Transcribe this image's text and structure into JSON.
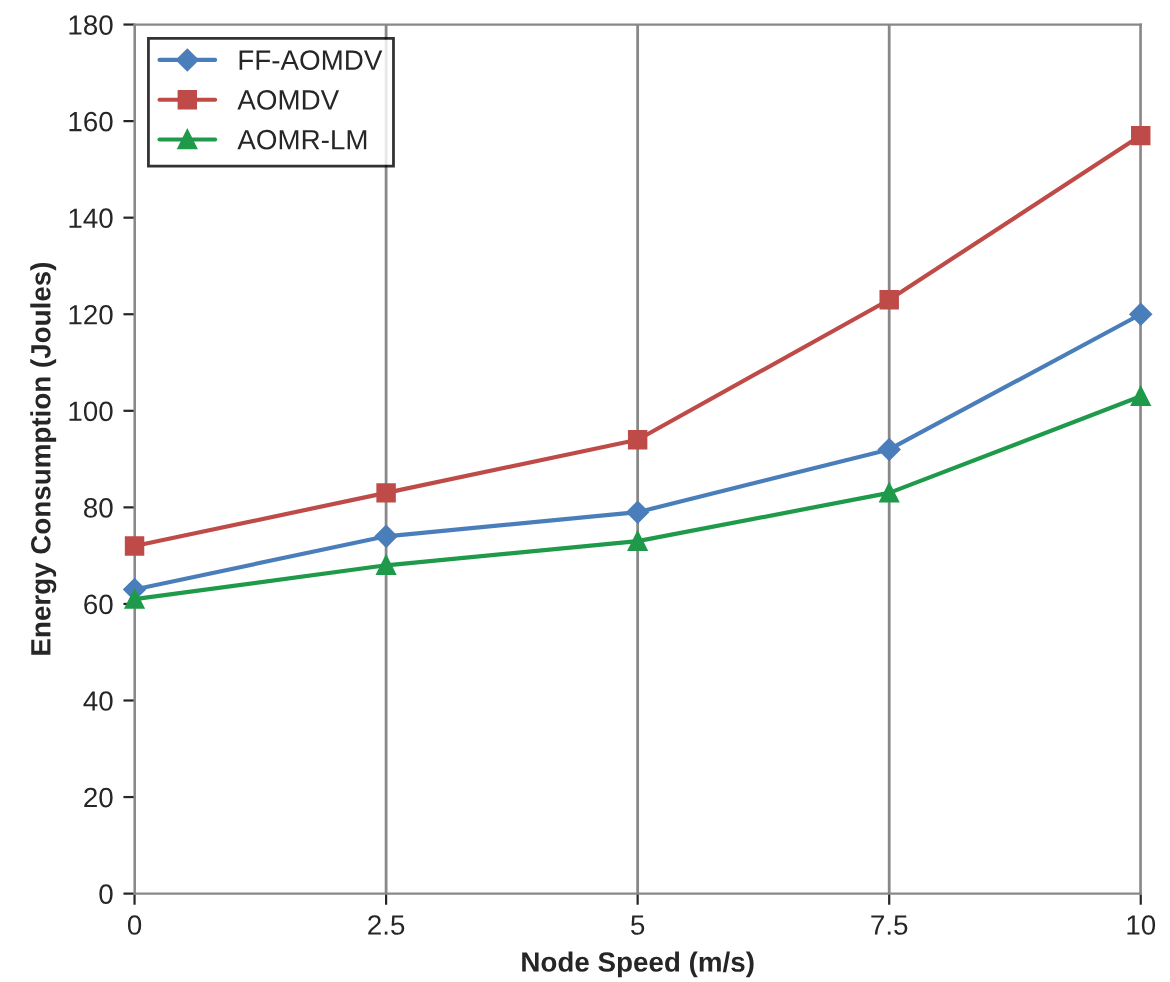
{
  "chart_data": {
    "type": "line",
    "xlabel": "Node Speed (m/s)",
    "ylabel": "Energy Consumption (Joules)",
    "x": [
      0,
      2.5,
      5,
      7.5,
      10
    ],
    "series": [
      {
        "name": "FF-AOMDV",
        "color": "#4a7ebb",
        "marker": "diamond",
        "values": [
          63,
          74,
          79,
          92,
          120
        ]
      },
      {
        "name": "AOMDV",
        "color": "#be4b48",
        "marker": "square",
        "values": [
          72,
          83,
          94,
          123,
          157
        ]
      },
      {
        "name": "AOMR-LM",
        "color": "#1e9a4a",
        "marker": "triangle",
        "values": [
          61,
          68,
          73,
          83,
          103
        ]
      }
    ],
    "xlim": [
      0,
      10
    ],
    "xticks": [
      0,
      2.5,
      5,
      7.5,
      10
    ],
    "ylim": [
      0,
      180
    ],
    "yticks": [
      0,
      20,
      40,
      60,
      80,
      100,
      120,
      140,
      160,
      180
    ],
    "grid": "x",
    "legend": "top left",
    "line_style": "solid"
  }
}
